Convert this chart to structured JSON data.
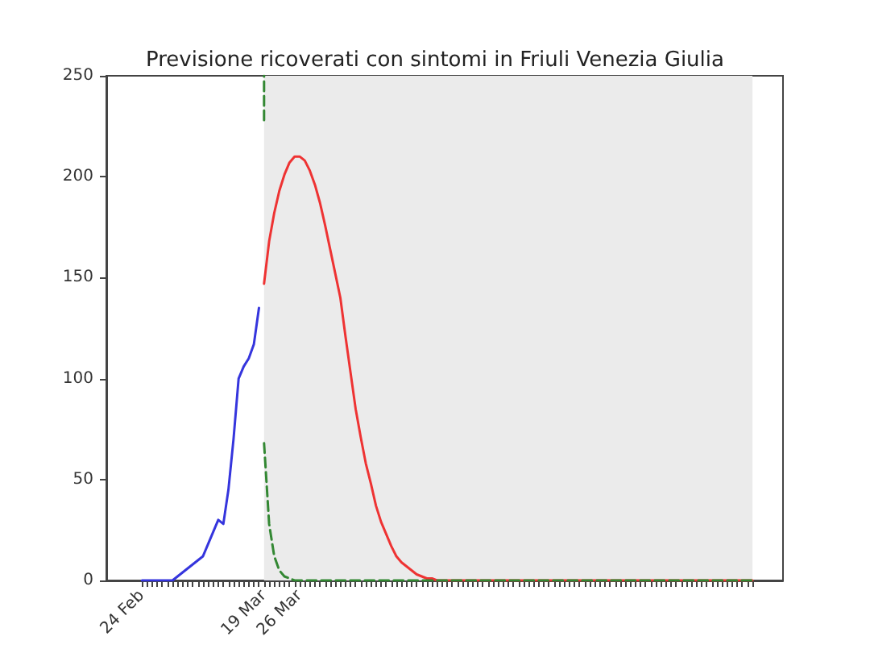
{
  "chart_data": {
    "type": "line",
    "title": "Previsione ricoverati con sintomi in Friuli Venezia Giulia",
    "xlim": [
      "--02-17",
      "--06-29"
    ],
    "ylim": [
      0,
      250
    ],
    "yticks": [
      0,
      50,
      100,
      150,
      200,
      250
    ],
    "xticks": [
      {
        "value": "--02-24",
        "label": "24 Feb"
      },
      {
        "value": "--02-25",
        "label": null
      },
      {
        "value": "--02-26",
        "label": null
      },
      {
        "value": "--02-27",
        "label": null
      },
      {
        "value": "--02-28",
        "label": null
      },
      {
        "value": "--02-29",
        "label": null
      },
      {
        "value": "--03-01",
        "label": null
      },
      {
        "value": "--03-02",
        "label": null
      },
      {
        "value": "--03-03",
        "label": null
      },
      {
        "value": "--03-04",
        "label": null
      },
      {
        "value": "--03-05",
        "label": null
      },
      {
        "value": "--03-06",
        "label": null
      },
      {
        "value": "--03-07",
        "label": null
      },
      {
        "value": "--03-08",
        "label": null
      },
      {
        "value": "--03-09",
        "label": null
      },
      {
        "value": "--03-10",
        "label": null
      },
      {
        "value": "--03-11",
        "label": null
      },
      {
        "value": "--03-12",
        "label": null
      },
      {
        "value": "--03-13",
        "label": null
      },
      {
        "value": "--03-14",
        "label": null
      },
      {
        "value": "--03-15",
        "label": null
      },
      {
        "value": "--03-16",
        "label": null
      },
      {
        "value": "--03-17",
        "label": null
      },
      {
        "value": "--03-18",
        "label": null
      },
      {
        "value": "--03-19",
        "label": "19 Mar"
      },
      {
        "value": "--03-20",
        "label": null
      },
      {
        "value": "--03-21",
        "label": null
      },
      {
        "value": "--03-22",
        "label": null
      },
      {
        "value": "--03-23",
        "label": null
      },
      {
        "value": "--03-24",
        "label": null
      },
      {
        "value": "--03-25",
        "label": null
      },
      {
        "value": "--03-26",
        "label": "26 Mar"
      },
      {
        "value": "--03-27",
        "label": null
      },
      {
        "value": "--03-28",
        "label": null
      },
      {
        "value": "--03-29",
        "label": null
      },
      {
        "value": "--03-30",
        "label": null
      },
      {
        "value": "--03-31",
        "label": null
      },
      {
        "value": "--04-01",
        "label": null
      },
      {
        "value": "--04-02",
        "label": null
      },
      {
        "value": "--04-03",
        "label": null
      },
      {
        "value": "--04-04",
        "label": null
      },
      {
        "value": "--04-05",
        "label": null
      },
      {
        "value": "--04-06",
        "label": null
      },
      {
        "value": "--04-07",
        "label": null
      },
      {
        "value": "--04-08",
        "label": null
      },
      {
        "value": "--04-09",
        "label": null
      },
      {
        "value": "--04-10",
        "label": null
      },
      {
        "value": "--04-11",
        "label": null
      },
      {
        "value": "--04-12",
        "label": null
      },
      {
        "value": "--04-13",
        "label": null
      },
      {
        "value": "--04-14",
        "label": null
      },
      {
        "value": "--04-15",
        "label": null
      },
      {
        "value": "--04-16",
        "label": null
      },
      {
        "value": "--04-17",
        "label": null
      },
      {
        "value": "--04-18",
        "label": null
      },
      {
        "value": "--04-19",
        "label": null
      },
      {
        "value": "--04-20",
        "label": null
      },
      {
        "value": "--04-21",
        "label": null
      },
      {
        "value": "--04-22",
        "label": null
      },
      {
        "value": "--04-23",
        "label": null
      },
      {
        "value": "--04-24",
        "label": null
      },
      {
        "value": "--04-25",
        "label": null
      },
      {
        "value": "--04-26",
        "label": null
      },
      {
        "value": "--04-27",
        "label": null
      },
      {
        "value": "--04-28",
        "label": null
      },
      {
        "value": "--04-29",
        "label": null
      },
      {
        "value": "--04-30",
        "label": null
      },
      {
        "value": "--05-01",
        "label": null
      },
      {
        "value": "--05-02",
        "label": null
      },
      {
        "value": "--05-03",
        "label": null
      },
      {
        "value": "--05-04",
        "label": null
      },
      {
        "value": "--05-05",
        "label": null
      },
      {
        "value": "--05-06",
        "label": null
      },
      {
        "value": "--05-07",
        "label": null
      },
      {
        "value": "--05-08",
        "label": null
      },
      {
        "value": "--05-09",
        "label": null
      },
      {
        "value": "--05-10",
        "label": null
      },
      {
        "value": "--05-11",
        "label": null
      },
      {
        "value": "--05-12",
        "label": null
      },
      {
        "value": "--05-13",
        "label": null
      },
      {
        "value": "--05-14",
        "label": null
      },
      {
        "value": "--05-15",
        "label": null
      },
      {
        "value": "--05-16",
        "label": null
      },
      {
        "value": "--05-17",
        "label": null
      },
      {
        "value": "--05-18",
        "label": null
      },
      {
        "value": "--05-19",
        "label": null
      },
      {
        "value": "--05-20",
        "label": null
      },
      {
        "value": "--05-21",
        "label": null
      },
      {
        "value": "--05-22",
        "label": null
      },
      {
        "value": "--05-23",
        "label": null
      },
      {
        "value": "--05-24",
        "label": null
      },
      {
        "value": "--05-25",
        "label": null
      },
      {
        "value": "--05-26",
        "label": null
      },
      {
        "value": "--05-27",
        "label": null
      },
      {
        "value": "--05-28",
        "label": null
      },
      {
        "value": "--05-29",
        "label": null
      },
      {
        "value": "--05-30",
        "label": null
      },
      {
        "value": "--05-31",
        "label": null
      },
      {
        "value": "--06-01",
        "label": null
      },
      {
        "value": "--06-02",
        "label": null
      },
      {
        "value": "--06-03",
        "label": null
      },
      {
        "value": "--06-04",
        "label": null
      },
      {
        "value": "--06-05",
        "label": null
      },
      {
        "value": "--06-06",
        "label": null
      },
      {
        "value": "--06-07",
        "label": null
      },
      {
        "value": "--06-08",
        "label": null
      },
      {
        "value": "--06-09",
        "label": null
      },
      {
        "value": "--06-10",
        "label": null
      },
      {
        "value": "--06-11",
        "label": null
      },
      {
        "value": "--06-12",
        "label": null
      },
      {
        "value": "--06-13",
        "label": null
      },
      {
        "value": "--06-14",
        "label": null
      },
      {
        "value": "--06-15",
        "label": null
      },
      {
        "value": "--06-16",
        "label": null
      },
      {
        "value": "--06-17",
        "label": null
      },
      {
        "value": "--06-18",
        "label": null
      },
      {
        "value": "--06-19",
        "label": null
      },
      {
        "value": "--06-20",
        "label": null
      },
      {
        "value": "--06-21",
        "label": null
      },
      {
        "value": "--06-22",
        "label": null
      },
      {
        "value": "--06-23",
        "label": null
      }
    ],
    "bands": [
      {
        "axis": "x",
        "from": "--03-19",
        "to": "--06-23",
        "color": "#ebebeb"
      }
    ],
    "series": [
      {
        "color": "#3535dd",
        "x": [
          "--02-24",
          "--02-25",
          "--02-26",
          "--02-27",
          "--02-28",
          "--02-29",
          "--03-01",
          "--03-02",
          "--03-03",
          "--03-04",
          "--03-05",
          "--03-06",
          "--03-07",
          "--03-08",
          "--03-09",
          "--03-10",
          "--03-11",
          "--03-12",
          "--03-13",
          "--03-14",
          "--03-15",
          "--03-16",
          "--03-17",
          "--03-18"
        ],
        "values": [
          0,
          0,
          0,
          0,
          0,
          0,
          0,
          2,
          4,
          6,
          8,
          10,
          12,
          18,
          24,
          30,
          28,
          45,
          70,
          100,
          106,
          110,
          117,
          135
        ]
      },
      {
        "color": "#ee3333",
        "x": [
          "--03-19",
          "--03-20",
          "--03-21",
          "--03-22",
          "--03-23",
          "--03-24",
          "--03-25",
          "--03-26",
          "--03-27",
          "--03-28",
          "--03-29",
          "--03-30",
          "--03-31",
          "--04-01",
          "--04-02",
          "--04-03",
          "--04-04",
          "--04-05",
          "--04-06",
          "--04-07",
          "--04-08",
          "--04-09",
          "--04-10",
          "--04-11",
          "--04-12",
          "--04-13",
          "--04-14",
          "--04-15",
          "--04-16",
          "--04-17",
          "--04-18",
          "--04-19",
          "--04-20",
          "--04-21",
          "--04-22",
          "--06-23"
        ],
        "values": [
          147,
          168,
          182,
          193,
          201,
          207,
          210,
          210,
          208,
          203,
          196,
          187,
          176,
          164,
          152,
          140,
          121,
          103,
          85,
          71,
          58,
          48,
          37,
          29,
          23,
          17,
          12,
          9,
          7,
          5,
          3,
          2,
          1,
          1,
          0,
          0
        ]
      },
      {
        "color": "#338833",
        "line_style": "dashed",
        "x": [
          "--03-19",
          "--03-19"
        ],
        "values": [
          228,
          250
        ]
      },
      {
        "color": "#338833",
        "line_style": "dashed",
        "x": [
          "--03-19",
          "--03-20",
          "--03-21",
          "--03-22",
          "--03-23",
          "--03-24",
          "--03-25",
          "--06-23"
        ],
        "values": [
          68,
          28,
          12,
          5,
          2,
          1,
          0,
          0
        ]
      }
    ]
  }
}
